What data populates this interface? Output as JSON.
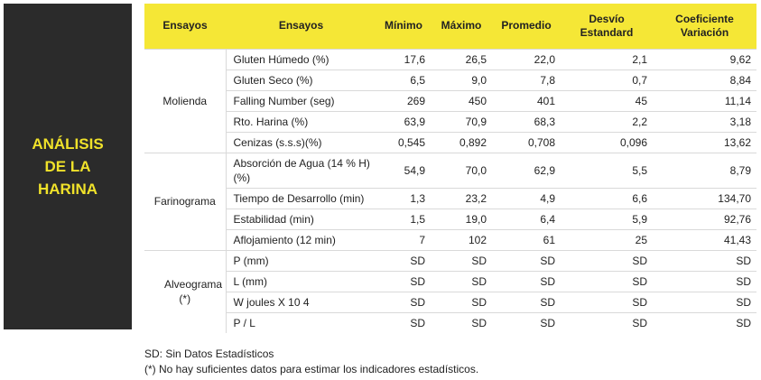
{
  "side_title": [
    "ANÁLISIS",
    "DE LA",
    "HARINA"
  ],
  "table": {
    "headers": {
      "group": "Ensayos",
      "ensayo": "Ensayos",
      "minimo": "Mínimo",
      "maximo": "Máximo",
      "promedio": "Promedio",
      "desvio": [
        "Desvío",
        "Estandard"
      ],
      "coef": [
        "Coeficiente",
        "Variación"
      ]
    },
    "groups": [
      {
        "name": "Molienda",
        "rows": [
          {
            "ensayo": "Gluten Húmedo (%)",
            "minimo": "17,6",
            "maximo": "26,5",
            "promedio": "22,0",
            "desvio": "2,1",
            "coef": "9,62"
          },
          {
            "ensayo": "Gluten Seco (%)",
            "minimo": "6,5",
            "maximo": "9,0",
            "promedio": "7,8",
            "desvio": "0,7",
            "coef": "8,84"
          },
          {
            "ensayo": "Falling Number (seg)",
            "minimo": "269",
            "maximo": "450",
            "promedio": "401",
            "desvio": "45",
            "coef": "11,14"
          },
          {
            "ensayo": "Rto. Harina (%)",
            "minimo": "63,9",
            "maximo": "70,9",
            "promedio": "68,3",
            "desvio": "2,2",
            "coef": "3,18"
          },
          {
            "ensayo": "Cenizas (s.s.s)(%)",
            "minimo": "0,545",
            "maximo": "0,892",
            "promedio": "0,708",
            "desvio": "0,096",
            "coef": "13,62"
          }
        ]
      },
      {
        "name": "Farinograma",
        "rows": [
          {
            "ensayo": "Absorción de Agua (14 % H) (%)",
            "minimo": "54,9",
            "maximo": "70,0",
            "promedio": "62,9",
            "desvio": "5,5",
            "coef": "8,79"
          },
          {
            "ensayo": "Tiempo de Desarrollo (min)",
            "minimo": "1,3",
            "maximo": "23,2",
            "promedio": "4,9",
            "desvio": "6,6",
            "coef": "134,70"
          },
          {
            "ensayo": "Estabilidad (min)",
            "minimo": "1,5",
            "maximo": "19,0",
            "promedio": "6,4",
            "desvio": "5,9",
            "coef": "92,76"
          },
          {
            "ensayo": "Aflojamiento (12 min)",
            "minimo": "7",
            "maximo": "102",
            "promedio": "61",
            "desvio": "25",
            "coef": "41,43"
          }
        ]
      },
      {
        "name": "Alveograma (*)",
        "rows": [
          {
            "ensayo": "P (mm)",
            "minimo": "SD",
            "maximo": "SD",
            "promedio": "SD",
            "desvio": "SD",
            "coef": "SD"
          },
          {
            "ensayo": "L (mm)",
            "minimo": "SD",
            "maximo": "SD",
            "promedio": "SD",
            "desvio": "SD",
            "coef": "SD"
          },
          {
            "ensayo": "W joules X 10 4",
            "minimo": "SD",
            "maximo": "SD",
            "promedio": "SD",
            "desvio": "SD",
            "coef": "SD"
          },
          {
            "ensayo": "P / L",
            "minimo": "SD",
            "maximo": "SD",
            "promedio": "SD",
            "desvio": "SD",
            "coef": "SD"
          }
        ]
      }
    ]
  },
  "notes": [
    "SD: Sin Datos Estadísticos",
    "(*) No hay suficientes datos para estimar los indicadores estadísticos."
  ],
  "colors": {
    "header_bg": "#f5e736",
    "panel_bg": "#2b2b2b",
    "panel_text": "#f0e22a"
  }
}
